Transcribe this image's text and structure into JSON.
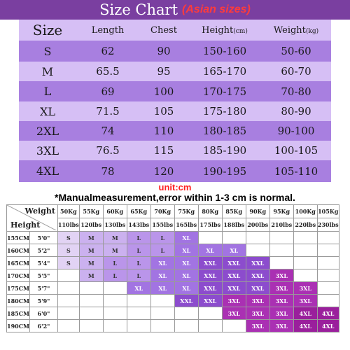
{
  "title": "Size Chart",
  "subtitle": "(Asian sizes)",
  "size_table": {
    "headers": [
      "Size",
      "Length",
      "Chest",
      "Height",
      "(cm)",
      "Weight",
      "(kg)"
    ],
    "rows": [
      [
        "S",
        "62",
        "90",
        "150-160",
        "50-60"
      ],
      [
        "M",
        "65.5",
        "95",
        "165-170",
        "60-70"
      ],
      [
        "L",
        "69",
        "100",
        "170-175",
        "70-80"
      ],
      [
        "XL",
        "71.5",
        "105",
        "175-180",
        "80-90"
      ],
      [
        "2XL",
        "74",
        "110",
        "180-185",
        "90-100"
      ],
      [
        "3XL",
        "76.5",
        "115",
        "185-190",
        "100-105"
      ],
      [
        "4XL",
        "78",
        "120",
        "190-195",
        "105-110"
      ]
    ]
  },
  "unit_label": "unit:cm",
  "note": "*Manualmeasurement,error within 1-3 cm is normal.",
  "grid": {
    "weight_label": "Weight",
    "height_label": "Height",
    "kg": [
      "50Kg",
      "55Kg",
      "60Kg",
      "65Kg",
      "70Kg",
      "75Kg",
      "80Kg",
      "85Kg",
      "90Kg",
      "95Kg",
      "100Kg",
      "105Kg"
    ],
    "lbs": [
      "110lbs",
      "120lbs",
      "130lbs",
      "143lbs",
      "155lbs",
      "165lbs",
      "175lbs",
      "188lbs",
      "200lbs",
      "210lbs",
      "220lbs",
      "230lbs"
    ],
    "rows": [
      {
        "cm": "155CM",
        "ft": "5'0\"",
        "cells": [
          "S",
          "M",
          "M",
          "L",
          "L",
          "XL",
          "",
          "",
          "",
          "",
          "",
          ""
        ]
      },
      {
        "cm": "160CM",
        "ft": "5'2\"",
        "cells": [
          "S",
          "M",
          "M",
          "L",
          "L",
          "XL",
          "XL",
          "XL",
          "",
          "",
          "",
          ""
        ]
      },
      {
        "cm": "165CM",
        "ft": "5'4\"",
        "cells": [
          "S",
          "M",
          "L",
          "L",
          "XL",
          "XL",
          "XXL",
          "XXL",
          "XXL",
          "",
          "",
          ""
        ]
      },
      {
        "cm": "170CM",
        "ft": "5'5\"",
        "cells": [
          "",
          "M",
          "L",
          "L",
          "XL",
          "XL",
          "XXL",
          "XXL",
          "XXL",
          "3XL",
          "",
          ""
        ]
      },
      {
        "cm": "175CM",
        "ft": "5'7\"",
        "cells": [
          "",
          "",
          "",
          "XL",
          "XL",
          "XL",
          "XXL",
          "XXL",
          "XXL",
          "3XL",
          "3XL",
          ""
        ]
      },
      {
        "cm": "180CM",
        "ft": "5'9\"",
        "cells": [
          "",
          "",
          "",
          "",
          "",
          "XXL",
          "XXL",
          "3XL",
          "3XL",
          "3XL",
          "3XL",
          ""
        ]
      },
      {
        "cm": "185CM",
        "ft": "6'0\"",
        "cells": [
          "",
          "",
          "",
          "",
          "",
          "",
          "",
          "3XL",
          "3XL",
          "3XL",
          "4XL",
          "4XL"
        ]
      },
      {
        "cm": "190CM",
        "ft": "6'2\"",
        "cells": [
          "",
          "",
          "",
          "",
          "",
          "",
          "",
          "",
          "3XL",
          "3XL",
          "4XL",
          "4XL"
        ]
      }
    ]
  },
  "colors": {
    "banner": "#7a3fa0",
    "stripe_dark": "#a87fe0",
    "stripe_light": "#d6bff5",
    "S": "#e2d3f4",
    "M": "#cbb1ef",
    "L": "#ba95ea",
    "XL": "#a274e2",
    "XXL": "#8c4ccd",
    "3XL": "#aa30b3",
    "4XL": "#9a1f9c"
  }
}
